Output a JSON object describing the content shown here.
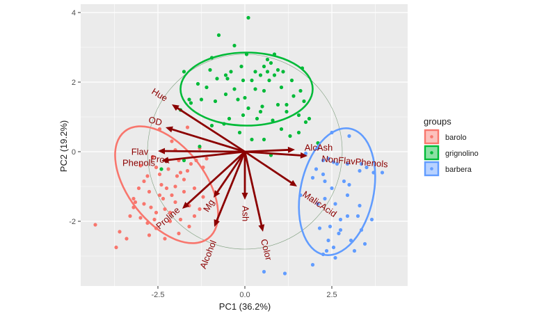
{
  "chart_data": {
    "type": "scatter",
    "subtype": "pca-biplot",
    "title": "",
    "xlabel": "PC1 (36.2%)",
    "ylabel": "PC2 (19.2%)",
    "xlim": [
      -4.7,
      4.7
    ],
    "ylim": [
      -3.85,
      4.25
    ],
    "x_ticks": [
      -2.5,
      0.0,
      2.5
    ],
    "x_tick_labels": [
      "-2.5",
      "0.0",
      "2.5"
    ],
    "y_ticks": [
      -2,
      0,
      2,
      4
    ],
    "y_tick_labels": [
      "-2",
      "0",
      "2",
      "4"
    ],
    "grid": true,
    "legend": {
      "title": "groups",
      "position": "right",
      "entries": [
        {
          "label": "barolo",
          "color": "#f8766d"
        },
        {
          "label": "grignolino",
          "color": "#00ba38"
        },
        {
          "label": "barbera",
          "color": "#619cff"
        }
      ]
    },
    "correlation_circle_radius": 2.8,
    "arrow_color": "#8b0000",
    "series": [
      {
        "name": "barolo",
        "color": "#f8766d",
        "ellipse": {
          "cx": -2.25,
          "cy": -0.95,
          "rx": 1.1,
          "ry": 1.95,
          "angle": 38
        },
        "points": [
          [
            -4.3,
            -2.1
          ],
          [
            -3.7,
            -2.75
          ],
          [
            -3.4,
            -2.5
          ],
          [
            -3.6,
            -2.3
          ],
          [
            -2.65,
            -0.15
          ],
          [
            -2.55,
            -0.45
          ],
          [
            -2.8,
            -0.7
          ],
          [
            -2.9,
            -0.85
          ],
          [
            -3.05,
            -1.05
          ],
          [
            -2.75,
            -1.15
          ],
          [
            -3.2,
            -1.35
          ],
          [
            -2.9,
            -1.5
          ],
          [
            -3.2,
            -1.6
          ],
          [
            -3.3,
            -1.85
          ],
          [
            -3.0,
            -1.9
          ],
          [
            -2.8,
            -2.05
          ],
          [
            -2.55,
            -1.75
          ],
          [
            -2.3,
            -1.65
          ],
          [
            -2.15,
            -1.75
          ],
          [
            -2.35,
            -1.35
          ],
          [
            -2.45,
            -1.25
          ],
          [
            -2.45,
            -0.65
          ],
          [
            -2.2,
            -0.5
          ],
          [
            -1.95,
            -0.7
          ],
          [
            -1.75,
            -0.8
          ],
          [
            -1.65,
            -0.55
          ],
          [
            -1.9,
            -0.25
          ],
          [
            -1.4,
            -0.25
          ],
          [
            -2.0,
            -1.0
          ],
          [
            -2.25,
            -1.05
          ],
          [
            -2.1,
            -1.25
          ],
          [
            -1.75,
            -1.15
          ],
          [
            -1.6,
            -1.55
          ],
          [
            -1.3,
            -1.65
          ],
          [
            -1.85,
            -1.95
          ],
          [
            -2.15,
            -2.0
          ],
          [
            -2.55,
            -2.2
          ],
          [
            -2.75,
            -2.4
          ],
          [
            -2.3,
            -2.5
          ],
          [
            -1.9,
            -2.35
          ],
          [
            -1.6,
            -2.15
          ],
          [
            -1.45,
            -1.85
          ],
          [
            -3.15,
            -1.45
          ],
          [
            -2.6,
            -1.95
          ],
          [
            -2.0,
            -1.45
          ],
          [
            -2.4,
            -0.95
          ],
          [
            -1.55,
            -0.35
          ],
          [
            -1.2,
            -0.45
          ],
          [
            -1.3,
            0.1
          ],
          [
            -2.1,
            0.3
          ],
          [
            -2.45,
            0.65
          ],
          [
            -1.65,
            0.7
          ],
          [
            -2.0,
            0.05
          ],
          [
            -3.0,
            -0.4
          ],
          [
            -1.85,
            -0.6
          ],
          [
            -1.45,
            -1.05
          ],
          [
            -2.7,
            -1.6
          ],
          [
            -1.2,
            -1.3
          ],
          [
            -1.1,
            -0.2
          ]
        ]
      },
      {
        "name": "grignolino",
        "color": "#00ba38",
        "ellipse": {
          "cx": 0.05,
          "cy": 1.8,
          "rx": 1.9,
          "ry": 1.05,
          "angle": 0
        },
        "points": [
          [
            0.1,
            3.85
          ],
          [
            -0.75,
            3.35
          ],
          [
            -0.3,
            3.05
          ],
          [
            0.85,
            2.8
          ],
          [
            -0.8,
            2.1
          ],
          [
            -0.55,
            2.2
          ],
          [
            -0.1,
            2.45
          ],
          [
            -0.4,
            2.3
          ],
          [
            0.2,
            2.05
          ],
          [
            0.3,
            2.3
          ],
          [
            0.55,
            2.45
          ],
          [
            0.65,
            2.65
          ],
          [
            0.75,
            2.55
          ],
          [
            0.85,
            2.2
          ],
          [
            0.95,
            2.35
          ],
          [
            1.1,
            2.3
          ],
          [
            0.05,
            2.8
          ],
          [
            -1.75,
            2.3
          ],
          [
            -1.35,
            1.95
          ],
          [
            -1.0,
            2.35
          ],
          [
            -0.55,
            1.65
          ],
          [
            -0.2,
            1.5
          ],
          [
            -0.05,
            1.05
          ],
          [
            0.45,
            1.15
          ],
          [
            0.8,
            0.9
          ],
          [
            1.4,
            1.6
          ],
          [
            1.7,
            1.45
          ],
          [
            1.6,
            1.75
          ],
          [
            1.55,
            1.05
          ],
          [
            1.2,
            1.35
          ],
          [
            0.55,
            1.75
          ],
          [
            0.3,
            1.8
          ],
          [
            -0.05,
            2.05
          ],
          [
            0.45,
            2.2
          ],
          [
            0.7,
            2.05
          ],
          [
            1.05,
            1.85
          ],
          [
            0.1,
            1.25
          ],
          [
            -0.45,
            0.95
          ],
          [
            -1.1,
            1.85
          ],
          [
            -1.25,
            1.5
          ],
          [
            -1.55,
            1.4
          ],
          [
            -1.85,
            1.2
          ],
          [
            -0.95,
            0.75
          ],
          [
            -0.15,
            0.55
          ],
          [
            0.55,
            0.35
          ],
          [
            1.05,
            0.65
          ],
          [
            1.55,
            0.55
          ],
          [
            1.85,
            0.95
          ],
          [
            2.1,
            0.25
          ],
          [
            0.2,
            0.35
          ],
          [
            -1.3,
            0.15
          ],
          [
            -1.75,
            -0.25
          ],
          [
            -2.4,
            -0.5
          ],
          [
            -0.6,
            0.8
          ],
          [
            1.75,
            0.85
          ],
          [
            0.75,
            -0.1
          ],
          [
            1.3,
            0.45
          ],
          [
            -0.85,
            1.45
          ],
          [
            -1.6,
            1.5
          ],
          [
            0.95,
            1.35
          ],
          [
            0.5,
            1.3
          ],
          [
            0.35,
            0.95
          ],
          [
            -0.95,
            2.7
          ],
          [
            -0.5,
            2.1
          ],
          [
            1.35,
            2.05
          ],
          [
            1.65,
            2.4
          ],
          [
            -0.3,
            1.8
          ],
          [
            0.0,
            1.55
          ],
          [
            1.2,
            1.15
          ],
          [
            0.65,
            2.3
          ]
        ]
      },
      {
        "name": "barbera",
        "color": "#619cff",
        "ellipse": {
          "cx": 2.65,
          "cy": -1.15,
          "rx": 1.85,
          "ry": 1.05,
          "angle": 78
        },
        "points": [
          [
            2.5,
            0.55
          ],
          [
            3.0,
            0.45
          ],
          [
            2.1,
            0.1
          ],
          [
            2.4,
            -0.2
          ],
          [
            2.55,
            -0.3
          ],
          [
            2.25,
            -0.25
          ],
          [
            1.75,
            -0.05
          ],
          [
            2.05,
            -0.5
          ],
          [
            2.25,
            -0.65
          ],
          [
            2.65,
            -0.35
          ],
          [
            3.35,
            -0.35
          ],
          [
            3.7,
            -0.6
          ],
          [
            3.95,
            -0.6
          ],
          [
            2.5,
            -1.05
          ],
          [
            2.3,
            -1.35
          ],
          [
            2.1,
            -1.5
          ],
          [
            1.95,
            -0.75
          ],
          [
            1.6,
            -1.25
          ],
          [
            2.85,
            -0.85
          ],
          [
            3.0,
            -0.95
          ],
          [
            3.3,
            -0.55
          ],
          [
            3.5,
            -0.45
          ],
          [
            2.75,
            -1.95
          ],
          [
            2.95,
            -1.85
          ],
          [
            2.45,
            -2.15
          ],
          [
            2.75,
            -2.25
          ],
          [
            2.15,
            -2.2
          ],
          [
            2.4,
            -2.55
          ],
          [
            3.25,
            -1.85
          ],
          [
            3.3,
            -1.55
          ],
          [
            3.45,
            -2.65
          ],
          [
            3.15,
            -2.85
          ],
          [
            3.65,
            -1.95
          ],
          [
            2.7,
            -2.35
          ],
          [
            2.55,
            -2.75
          ],
          [
            2.35,
            -2.85
          ],
          [
            2.25,
            -2.95
          ],
          [
            2.6,
            -3.05
          ],
          [
            1.95,
            -3.25
          ],
          [
            3.05,
            -2.55
          ],
          [
            1.15,
            -3.5
          ],
          [
            0.55,
            -3.45
          ],
          [
            2.95,
            -1.25
          ],
          [
            3.35,
            -2.25
          ],
          [
            2.6,
            -1.5
          ],
          [
            2.3,
            -0.85
          ],
          [
            2.95,
            -0.35
          ]
        ]
      }
    ],
    "variables": [
      {
        "name": "Hue",
        "x": -2.1,
        "y": 1.36,
        "label_angle": 32
      },
      {
        "name": "OD",
        "x": -2.28,
        "y": 0.7,
        "label_angle": 15
      },
      {
        "name": "Flav",
        "x": -2.5,
        "y": 0.02,
        "label_angle": 0
      },
      {
        "name": "Proa",
        "x": -2.4,
        "y": -0.26,
        "label_angle": 5
      },
      {
        "name": "Phenols",
        "x": -2.45,
        "y": -0.2,
        "label_angle": 0
      },
      {
        "name": "Proline",
        "x": -1.8,
        "y": -1.64,
        "label_angle": -42
      },
      {
        "name": "Mg",
        "x": -0.9,
        "y": -1.32,
        "label_angle": -58
      },
      {
        "name": "Alcohol",
        "x": -0.88,
        "y": -2.16,
        "label_angle": -68
      },
      {
        "name": "Ash",
        "x": 0.0,
        "y": -1.38,
        "label_angle": 90
      },
      {
        "name": "Color",
        "x": 0.52,
        "y": -2.3,
        "label_angle": 76
      },
      {
        "name": "MalicAcid",
        "x": 1.5,
        "y": -1.0,
        "label_angle": 34
      },
      {
        "name": "AlcAsh",
        "x": 1.44,
        "y": 0.06,
        "label_angle": 0
      },
      {
        "name": "NonFlavPhenols",
        "x": 1.8,
        "y": -0.12,
        "label_angle": 5
      }
    ]
  }
}
